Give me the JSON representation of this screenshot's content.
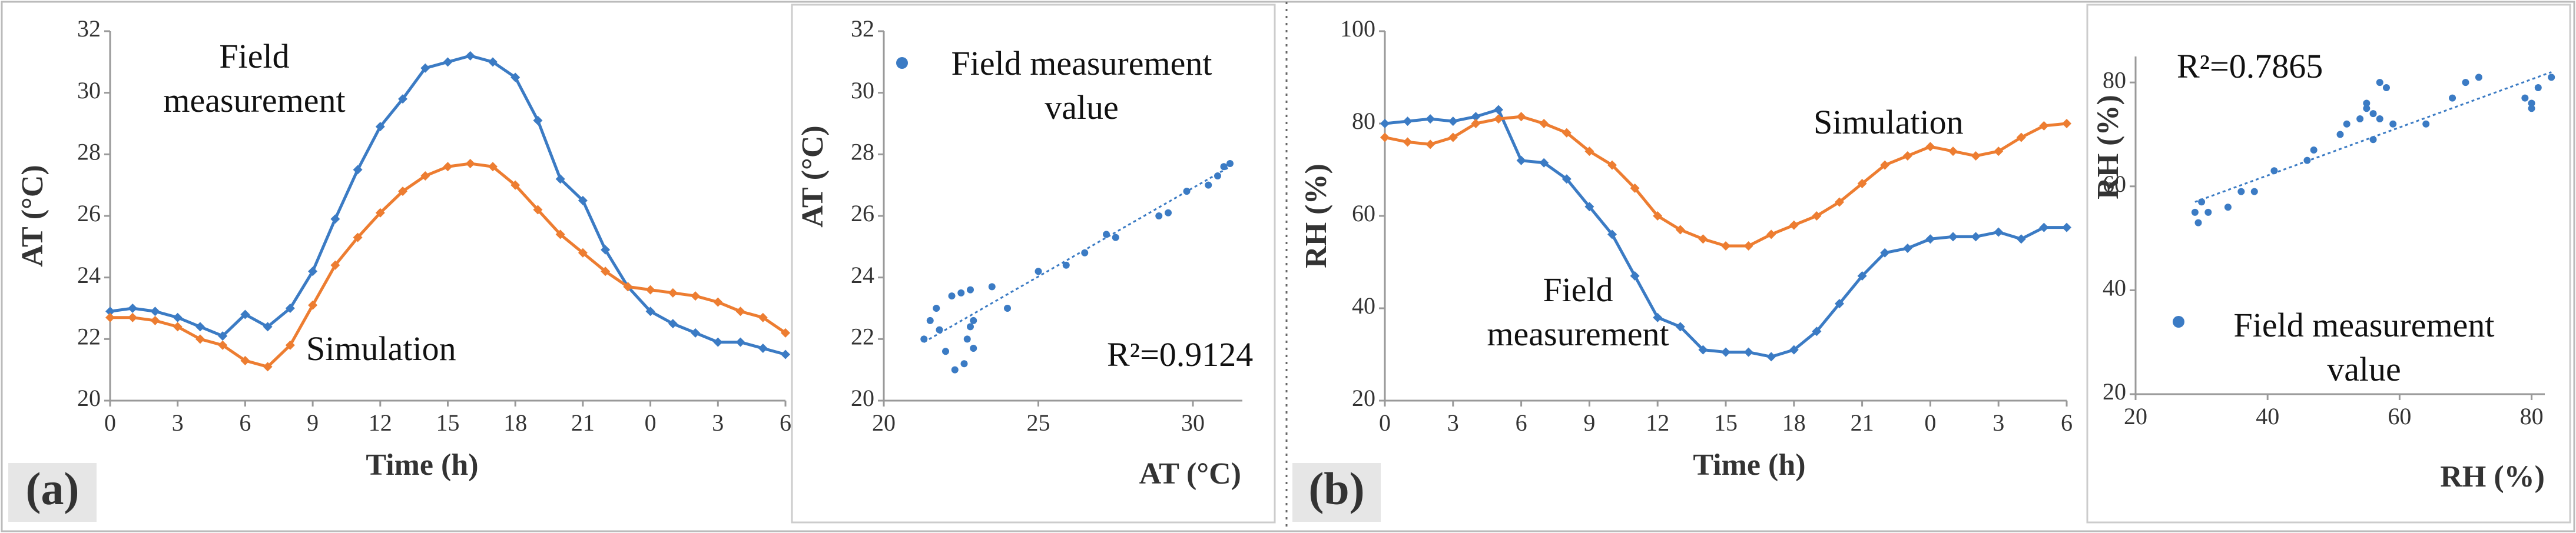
{
  "chart_data": [
    {
      "type": "line",
      "panel_label": "(a)",
      "xlabel": "Time (h)",
      "ylabel": "AT (°C)",
      "x": [
        0,
        1,
        2,
        3,
        4,
        5,
        6,
        7,
        8,
        9,
        10,
        11,
        12,
        13,
        14,
        15,
        16,
        17,
        18,
        19,
        20,
        21,
        22,
        23,
        24,
        25,
        26,
        27,
        28,
        29,
        30
      ],
      "xlim": [
        0,
        30
      ],
      "xticks": [
        0,
        3,
        6,
        9,
        12,
        15,
        18,
        21,
        {
          "value": 24,
          "label": "0"
        },
        {
          "value": 27,
          "label": "3"
        },
        {
          "value": 30,
          "label": "6"
        }
      ],
      "ylim": [
        20,
        32
      ],
      "yticks": [
        20,
        22,
        24,
        26,
        28,
        30,
        32
      ],
      "series": [
        {
          "name": "Field measurement",
          "color": "#3b7bc4",
          "values": [
            22.9,
            23.0,
            22.9,
            22.7,
            22.4,
            22.1,
            22.8,
            22.4,
            23.0,
            24.2,
            25.9,
            27.5,
            28.9,
            29.8,
            30.8,
            31.0,
            31.2,
            31.0,
            30.5,
            29.1,
            27.2,
            26.5,
            24.9,
            23.7,
            22.9,
            22.5,
            22.2,
            21.9,
            21.9,
            21.7,
            21.5
          ]
        },
        {
          "name": "Simulation",
          "color": "#ed7d31",
          "values": [
            22.7,
            22.7,
            22.6,
            22.4,
            22.0,
            21.8,
            21.3,
            21.1,
            21.8,
            23.1,
            24.4,
            25.3,
            26.1,
            26.8,
            27.3,
            27.6,
            27.7,
            27.6,
            27.0,
            26.2,
            25.4,
            24.8,
            24.2,
            23.7,
            23.6,
            23.5,
            23.4,
            23.2,
            22.9,
            22.7,
            22.2
          ]
        }
      ]
    },
    {
      "type": "scatter",
      "xlabel": "AT (°C)",
      "ylabel": "AT (°C)",
      "x": [
        21.3,
        21.5,
        21.7,
        21.8,
        22.0,
        22.2,
        22.3,
        22.5,
        22.6,
        22.7,
        22.8,
        22.9,
        22.9,
        22.8,
        23.5,
        24.0,
        25.0,
        25.9,
        26.5,
        27.2,
        27.5,
        28.9,
        29.2,
        29.8,
        30.5,
        30.8,
        31.0,
        31.2
      ],
      "xlim": [
        20,
        31.6
      ],
      "xticks": [
        20,
        25,
        30
      ],
      "ylim": [
        20,
        32
      ],
      "yticks": [
        20,
        22,
        24,
        26,
        28,
        30,
        32
      ],
      "series": [
        {
          "name": "Field measurement value",
          "color": "#3b7bc4",
          "values": [
            22.0,
            22.6,
            23.0,
            22.3,
            21.6,
            23.4,
            21.0,
            23.5,
            21.2,
            22.0,
            22.4,
            22.6,
            21.7,
            23.6,
            23.7,
            23.0,
            24.2,
            24.4,
            24.8,
            25.4,
            25.3,
            26.0,
            26.1,
            26.8,
            27.0,
            27.3,
            27.6,
            27.7
          ]
        }
      ],
      "trendline": {
        "x": [
          21.3,
          31.2
        ],
        "values": [
          21.9,
          27.6
        ],
        "color": "#3b7bc4"
      },
      "annotations": [
        {
          "text": "R²=0.9124"
        }
      ]
    },
    {
      "type": "line",
      "panel_label": "(b)",
      "xlabel": "Time (h)",
      "ylabel": "RH (%)",
      "x": [
        0,
        1,
        2,
        3,
        4,
        5,
        6,
        7,
        8,
        9,
        10,
        11,
        12,
        13,
        14,
        15,
        16,
        17,
        18,
        19,
        20,
        21,
        22,
        23,
        24,
        25,
        26,
        27,
        28,
        29,
        30
      ],
      "xlim": [
        0,
        30
      ],
      "xticks": [
        0,
        3,
        6,
        9,
        12,
        15,
        18,
        21,
        {
          "value": 24,
          "label": "0"
        },
        {
          "value": 27,
          "label": "3"
        },
        {
          "value": 30,
          "label": "6"
        }
      ],
      "ylim": [
        20,
        100
      ],
      "yticks": [
        20,
        40,
        60,
        80,
        100
      ],
      "series": [
        {
          "name": "Field measurement",
          "color": "#3b7bc4",
          "values": [
            80,
            80.5,
            81,
            80.5,
            81.5,
            83,
            72,
            71.5,
            68,
            62,
            56,
            47,
            38,
            36,
            31,
            30.5,
            30.5,
            29.5,
            31,
            35,
            41,
            47,
            52,
            53,
            55,
            55.5,
            55.5,
            56.5,
            55,
            57.5,
            57.5
          ]
        },
        {
          "name": "Simulation",
          "color": "#ed7d31",
          "values": [
            77,
            76,
            75.5,
            77,
            80,
            81,
            81.5,
            80,
            78,
            74,
            71,
            66,
            60,
            57,
            55,
            53.5,
            53.5,
            56,
            58,
            60,
            63,
            67,
            71,
            73,
            75,
            74,
            73,
            74,
            77,
            79.5,
            80
          ]
        }
      ]
    },
    {
      "type": "scatter",
      "xlabel": "RH (%)",
      "ylabel": "RH (%)",
      "x": [
        29,
        29.5,
        30,
        31,
        34,
        36,
        38,
        41,
        46,
        47,
        51,
        52,
        54,
        55,
        55,
        56,
        56,
        57,
        57,
        58,
        59,
        64,
        68,
        70,
        72,
        79,
        80,
        80,
        81,
        83
      ],
      "xlim": [
        20,
        82
      ],
      "xticks": [
        20,
        40,
        60,
        80
      ],
      "ylim": [
        20,
        85
      ],
      "yticks": [
        20,
        40,
        60,
        80
      ],
      "series": [
        {
          "name": "Field measurement value",
          "color": "#3b7bc4",
          "values": [
            55,
            53,
            57,
            55,
            56,
            59,
            59,
            63,
            65,
            67,
            70,
            72,
            73,
            75,
            76,
            74,
            69,
            73,
            80,
            79,
            72,
            72,
            77,
            80,
            81,
            77,
            76,
            75,
            79,
            81
          ]
        }
      ],
      "trendline": {
        "x": [
          29,
          83
        ],
        "values": [
          57,
          82
        ],
        "color": "#3b7bc4"
      },
      "annotations": [
        {
          "text": "R²=0.7865"
        }
      ]
    }
  ]
}
